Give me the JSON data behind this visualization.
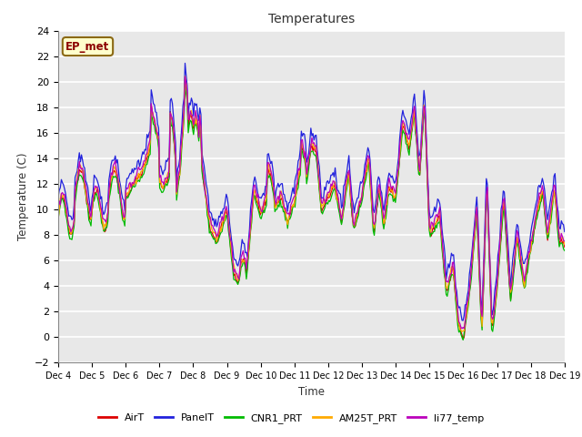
{
  "title": "Temperatures",
  "xlabel": "Time",
  "ylabel": "Temperature (C)",
  "ylim": [
    -2,
    24
  ],
  "annotation": "EP_met",
  "xtick_labels": [
    "Dec 4",
    "Dec 5",
    "Dec 6",
    "Dec 7",
    "Dec 8",
    "Dec 9",
    "Dec 10",
    "Dec 11",
    "Dec 12",
    "Dec 13",
    "Dec 14",
    "Dec 15",
    "Dec 16",
    "Dec 17",
    "Dec 18",
    "Dec 19"
  ],
  "series_names": [
    "AirT",
    "PanelT",
    "CNR1_PRT",
    "AM25T_PRT",
    "li77_temp"
  ],
  "series_colors": [
    "#dd0000",
    "#2222dd",
    "#00bb00",
    "#ffaa00",
    "#bb00bb"
  ],
  "plot_bgcolor": "#e8e8e8",
  "fig_bgcolor": "#ffffff",
  "grid_color": "#ffffff",
  "num_points": 480
}
